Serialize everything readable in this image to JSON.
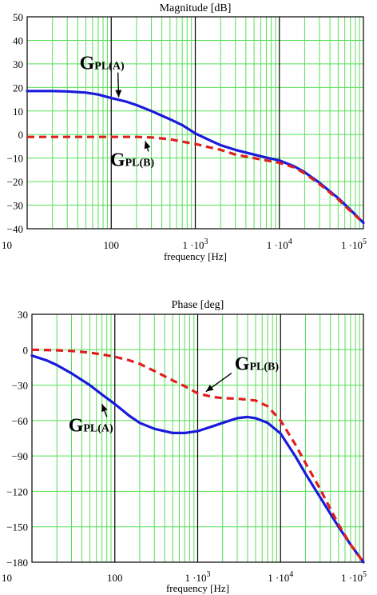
{
  "chart_data": [
    {
      "type": "line",
      "title": "Magnitude [dB]",
      "xlabel": "frequency [Hz]",
      "ylabel": "",
      "xscale": "log",
      "xlim": [
        10,
        100000
      ],
      "ylim": [
        -40,
        50
      ],
      "grid": true,
      "x_tick_labels": [
        {
          "value": 10,
          "main": "10",
          "sup": ""
        },
        {
          "value": 100,
          "main": "100",
          "sup": ""
        },
        {
          "value": 1000,
          "main": "1 ·10",
          "sup": "3"
        },
        {
          "value": 10000,
          "main": "1 ·10",
          "sup": "4"
        },
        {
          "value": 100000,
          "main": "1 ·10",
          "sup": "5"
        }
      ],
      "y_ticks": [
        -40,
        -30,
        -20,
        -10,
        0,
        10,
        20,
        30,
        40,
        50
      ],
      "y_tick_labels": [
        "−40",
        "−30",
        "−20",
        "−10",
        "0",
        "10",
        "20",
        "30",
        "40",
        "50"
      ],
      "series": [
        {
          "id": "A",
          "color": "#1a1adc",
          "style": "solid",
          "x": [
            10,
            20,
            30,
            50,
            70,
            100,
            150,
            200,
            300,
            500,
            700,
            1000,
            1500,
            2000,
            3000,
            5000,
            7000,
            10000,
            15000,
            20000,
            30000,
            50000,
            70000,
            100000
          ],
          "y": [
            18.5,
            18.5,
            18.3,
            17.8,
            17,
            15.5,
            14,
            12.5,
            10,
            6.5,
            4,
            0.5,
            -2.5,
            -4.5,
            -6.5,
            -8.5,
            -9.8,
            -11,
            -13.5,
            -16,
            -20.5,
            -27,
            -32,
            -37.5
          ]
        },
        {
          "id": "B",
          "color": "#e01e1e",
          "style": "dashed",
          "x": [
            10,
            20,
            50,
            100,
            200,
            300,
            500,
            700,
            1000,
            1500,
            2000,
            3000,
            5000,
            7000,
            10000,
            15000,
            20000,
            30000,
            50000,
            70000,
            100000
          ],
          "y": [
            -1,
            -1,
            -1,
            -1,
            -1,
            -1.2,
            -2,
            -3,
            -4,
            -5.5,
            -6.5,
            -8.5,
            -10,
            -11,
            -12,
            -14,
            -16.5,
            -21,
            -27.5,
            -32.5,
            -37.5
          ]
        }
      ],
      "annotations": [
        {
          "target": "A",
          "text": "G",
          "sub": "PL(A)",
          "point": [
            140,
            14.8
          ]
        },
        {
          "target": "B",
          "text": "G",
          "sub": "PL(B)",
          "point": [
            290,
            -1.1
          ]
        }
      ]
    },
    {
      "type": "line",
      "title": "Phase [deg]",
      "xlabel": "frequency [Hz]",
      "ylabel": "",
      "xscale": "log",
      "xlim": [
        10,
        100000
      ],
      "ylim": [
        -180,
        30
      ],
      "grid": true,
      "x_tick_labels": [
        {
          "value": 10,
          "main": "10",
          "sup": ""
        },
        {
          "value": 100,
          "main": "100",
          "sup": ""
        },
        {
          "value": 1000,
          "main": "1 ·10",
          "sup": "3"
        },
        {
          "value": 10000,
          "main": "1 ·10",
          "sup": "4"
        },
        {
          "value": 100000,
          "main": "1 ·10",
          "sup": "5"
        }
      ],
      "y_ticks": [
        -180,
        -150,
        -120,
        -90,
        -60,
        -30,
        0,
        30
      ],
      "y_tick_labels": [
        "−180",
        "−150",
        "−120",
        "−90",
        "−60",
        "−30",
        "0",
        "30"
      ],
      "series": [
        {
          "id": "A",
          "color": "#1a1adc",
          "style": "solid",
          "x": [
            10,
            15,
            20,
            30,
            50,
            70,
            100,
            150,
            200,
            300,
            500,
            700,
            1000,
            1500,
            2000,
            3000,
            4000,
            5000,
            7000,
            10000,
            15000,
            20000,
            30000,
            50000,
            70000,
            100000
          ],
          "y": [
            -5,
            -9,
            -13,
            -20,
            -30,
            -38,
            -46,
            -56,
            -62,
            -67,
            -70.5,
            -70.5,
            -69,
            -65,
            -62,
            -58,
            -57,
            -58,
            -62,
            -71,
            -90,
            -105,
            -125,
            -150,
            -165,
            -180
          ]
        },
        {
          "id": "B",
          "color": "#e01e1e",
          "style": "dashed",
          "x": [
            10,
            20,
            30,
            50,
            70,
            100,
            150,
            200,
            300,
            500,
            700,
            1000,
            1500,
            2000,
            3000,
            5000,
            7000,
            10000,
            15000,
            20000,
            30000,
            50000,
            70000,
            100000
          ],
          "y": [
            0,
            -0.5,
            -1,
            -2.5,
            -4,
            -6,
            -9,
            -12,
            -18,
            -26,
            -31,
            -37,
            -40,
            -41,
            -41.5,
            -43,
            -48,
            -60,
            -80,
            -96,
            -118,
            -148,
            -165,
            -180
          ]
        }
      ],
      "annotations": [
        {
          "target": "B",
          "text": "G",
          "sub": "PL(B)",
          "point": [
            1100,
            -37.5
          ]
        },
        {
          "target": "A",
          "text": "G",
          "sub": "PL(A)",
          "point": [
            80,
            -42
          ]
        }
      ]
    }
  ]
}
